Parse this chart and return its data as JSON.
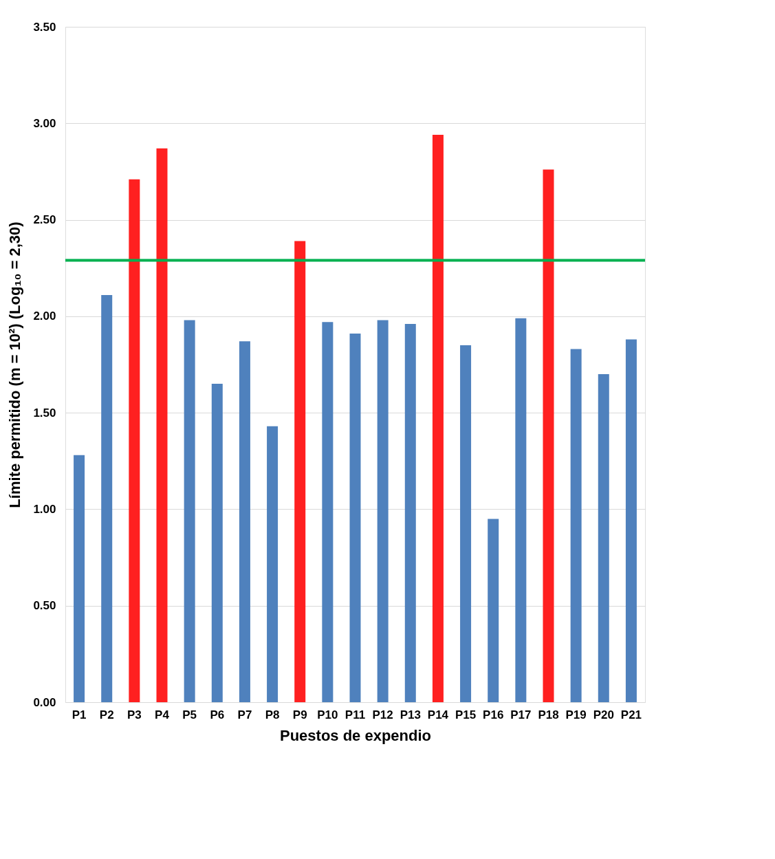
{
  "chart_data": {
    "type": "bar",
    "xlabel": "Puestos de expendio",
    "ylabel": "Límite permitido (m = 10²) (Log₁₀ = 2,30)",
    "categories": [
      "P1",
      "P2",
      "P3",
      "P4",
      "P5",
      "P6",
      "P7",
      "P8",
      "P9",
      "P10",
      "P11",
      "P12",
      "P13",
      "P14",
      "P15",
      "P16",
      "P17",
      "P18",
      "P19",
      "P20",
      "P21"
    ],
    "values": [
      1.28,
      2.11,
      2.71,
      2.87,
      1.98,
      1.65,
      1.87,
      1.43,
      2.39,
      1.97,
      1.91,
      1.98,
      1.96,
      2.94,
      1.85,
      0.95,
      1.99,
      2.76,
      1.83,
      1.7,
      1.88
    ],
    "colors": [
      "#4f81bd",
      "#4f81bd",
      "#ff2020",
      "#ff2020",
      "#4f81bd",
      "#4f81bd",
      "#4f81bd",
      "#4f81bd",
      "#ff2020",
      "#4f81bd",
      "#4f81bd",
      "#4f81bd",
      "#4f81bd",
      "#ff2020",
      "#4f81bd",
      "#4f81bd",
      "#4f81bd",
      "#ff2020",
      "#4f81bd",
      "#4f81bd",
      "#4f81bd"
    ],
    "ylim": [
      0,
      3.5
    ],
    "yticks": [
      {
        "value": 0,
        "label": "0.00"
      },
      {
        "value": 0.5,
        "label": "0.50"
      },
      {
        "value": 1,
        "label": "1.00"
      },
      {
        "value": 1.5,
        "label": "1.50"
      },
      {
        "value": 2,
        "label": "2.00"
      },
      {
        "value": 2.5,
        "label": "2.50"
      },
      {
        "value": 3,
        "label": "3.00"
      },
      {
        "value": 3.5,
        "label": "3.50"
      }
    ],
    "grid": "y",
    "ref_lines": [
      {
        "axis": "y",
        "value": 2.29,
        "label": null,
        "color": "#00b050",
        "line_style": "solid"
      }
    ]
  }
}
